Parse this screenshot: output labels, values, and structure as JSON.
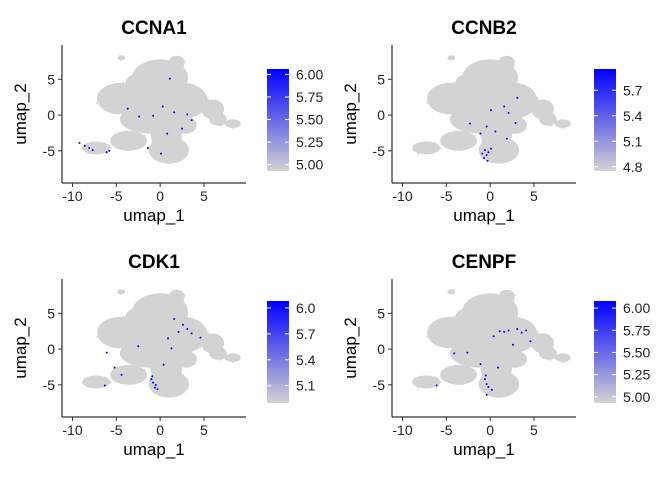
{
  "chart_data": [
    {
      "type": "scatter",
      "title": "CCNA1",
      "xlabel": "umap_1",
      "ylabel": "umap_2",
      "xlim": [
        -11.2,
        9.8
      ],
      "ylim": [
        -9.5,
        9.8
      ],
      "xticks": [
        -10,
        -5,
        0,
        5
      ],
      "yticks": [
        -5,
        0,
        5
      ],
      "xtick_labels": [
        "-10",
        "-5",
        "0",
        "5"
      ],
      "ytick_labels": [
        "-5",
        "0",
        "5"
      ],
      "legend": {
        "placement": "right",
        "min": 4.93,
        "max": 6.06,
        "ticks": [
          5.0,
          5.25,
          5.5,
          5.75,
          6.0
        ],
        "tick_labels": [
          "5.00",
          "5.25",
          "5.50",
          "5.75",
          "6.00"
        ]
      },
      "colors": {
        "low": "#d3d3d3",
        "high": "#0000ff"
      },
      "expressing_cells": [
        [
          -9.2,
          -3.9
        ],
        [
          -8.6,
          -4.3
        ],
        [
          -8.1,
          -4.6
        ],
        [
          -7.7,
          -4.9
        ],
        [
          -6.1,
          -5.2
        ],
        [
          -5.8,
          -5.0
        ],
        [
          -3.7,
          0.9
        ],
        [
          -2.4,
          -0.2
        ],
        [
          -0.8,
          -0.1
        ],
        [
          1.6,
          0.4
        ],
        [
          0.3,
          1.2
        ],
        [
          -1.4,
          -4.6
        ],
        [
          0.1,
          -5.4
        ],
        [
          0.8,
          -2.6
        ],
        [
          2.5,
          -1.9
        ],
        [
          3.1,
          0.1
        ],
        [
          1.1,
          5.1
        ],
        [
          3.6,
          -0.7
        ]
      ]
    },
    {
      "type": "scatter",
      "title": "CCNB2",
      "xlabel": "umap_1",
      "ylabel": "umap_2",
      "xlim": [
        -11.2,
        9.8
      ],
      "ylim": [
        -9.5,
        9.8
      ],
      "xticks": [
        -10,
        -5,
        0,
        5
      ],
      "yticks": [
        -5,
        0,
        5
      ],
      "xtick_labels": [
        "-10",
        "-5",
        "0",
        "5"
      ],
      "ytick_labels": [
        "-5",
        "0",
        "5"
      ],
      "legend": {
        "placement": "right",
        "min": 4.75,
        "max": 5.95,
        "ticks": [
          4.8,
          5.1,
          5.4,
          5.7
        ],
        "tick_labels": [
          "4.8",
          "5.1",
          "5.4",
          "5.7"
        ]
      },
      "colors": {
        "low": "#d3d3d3",
        "high": "#0000ff"
      },
      "expressing_cells": [
        [
          -0.6,
          -4.9
        ],
        [
          -0.4,
          -5.6
        ],
        [
          -0.2,
          -5.2
        ],
        [
          -0.7,
          -6.0
        ],
        [
          -0.3,
          -6.4
        ],
        [
          0.1,
          -4.7
        ],
        [
          -0.9,
          -5.4
        ],
        [
          0.6,
          -2.3
        ],
        [
          -0.4,
          -1.6
        ],
        [
          2.1,
          0.3
        ],
        [
          2.9,
          -1.1
        ],
        [
          3.1,
          2.4
        ],
        [
          1.6,
          1.2
        ],
        [
          0.1,
          0.7
        ],
        [
          -2.3,
          -1.2
        ],
        [
          1.9,
          -3.3
        ],
        [
          -1.1,
          -2.6
        ]
      ]
    },
    {
      "type": "scatter",
      "title": "CDK1",
      "xlabel": "umap_1",
      "ylabel": "umap_2",
      "xlim": [
        -11.2,
        9.8
      ],
      "ylim": [
        -9.5,
        9.8
      ],
      "xticks": [
        -10,
        -5,
        0,
        5
      ],
      "yticks": [
        -5,
        0,
        5
      ],
      "xtick_labels": [
        "-10",
        "-5",
        "0",
        "5"
      ],
      "ytick_labels": [
        "-5",
        "0",
        "5"
      ],
      "legend": {
        "placement": "right",
        "min": 4.9,
        "max": 6.08,
        "ticks": [
          5.1,
          5.4,
          5.7,
          6.0
        ],
        "tick_labels": [
          "5.1",
          "5.4",
          "5.7",
          "6.0"
        ]
      },
      "colors": {
        "low": "#d3d3d3",
        "high": "#0000ff"
      },
      "expressing_cells": [
        [
          -1.0,
          -4.2
        ],
        [
          -0.8,
          -4.7
        ],
        [
          -0.5,
          -5.0
        ],
        [
          -0.9,
          -3.8
        ],
        [
          -0.3,
          -5.6
        ],
        [
          -0.6,
          -5.4
        ],
        [
          -5.2,
          -2.6
        ],
        [
          -6.3,
          -5.1
        ],
        [
          -4.4,
          -3.6
        ],
        [
          -2.5,
          0.4
        ],
        [
          0.9,
          1.5
        ],
        [
          2.1,
          2.4
        ],
        [
          3.1,
          2.8
        ],
        [
          1.6,
          4.2
        ],
        [
          3.6,
          2.2
        ],
        [
          1.3,
          0.1
        ],
        [
          4.6,
          1.6
        ],
        [
          2.6,
          3.4
        ],
        [
          0.4,
          -2.2
        ],
        [
          -6.1,
          -0.5
        ]
      ]
    },
    {
      "type": "scatter",
      "title": "CENPF",
      "xlabel": "umap_1",
      "ylabel": "umap_2",
      "xlim": [
        -11.2,
        9.8
      ],
      "ylim": [
        -9.5,
        9.8
      ],
      "xticks": [
        -10,
        -5,
        0,
        5
      ],
      "yticks": [
        -5,
        0,
        5
      ],
      "xtick_labels": [
        "-10",
        "-5",
        "0",
        "5"
      ],
      "ytick_labels": [
        "-5",
        "0",
        "5"
      ],
      "legend": {
        "placement": "right",
        "min": 4.93,
        "max": 6.08,
        "ticks": [
          5.0,
          5.25,
          5.5,
          5.75,
          6.0
        ],
        "tick_labels": [
          "5.00",
          "5.25",
          "5.50",
          "5.75",
          "6.00"
        ]
      },
      "colors": {
        "low": "#d3d3d3",
        "high": "#0000ff"
      },
      "expressing_cells": [
        [
          -0.6,
          -4.2
        ],
        [
          -0.4,
          -4.9
        ],
        [
          -0.2,
          -5.3
        ],
        [
          -0.5,
          -3.7
        ],
        [
          0.2,
          -5.7
        ],
        [
          1.1,
          2.5
        ],
        [
          2.1,
          2.6
        ],
        [
          3.1,
          2.8
        ],
        [
          4.1,
          2.6
        ],
        [
          1.6,
          2.4
        ],
        [
          3.6,
          2.3
        ],
        [
          0.4,
          1.8
        ],
        [
          -4.1,
          -0.6
        ],
        [
          -2.6,
          -0.5
        ],
        [
          2.6,
          0.6
        ],
        [
          4.6,
          1.1
        ],
        [
          -1.1,
          -2.1
        ],
        [
          -0.4,
          -6.4
        ],
        [
          0.9,
          -2.6
        ],
        [
          -6.1,
          -5.1
        ]
      ]
    }
  ]
}
